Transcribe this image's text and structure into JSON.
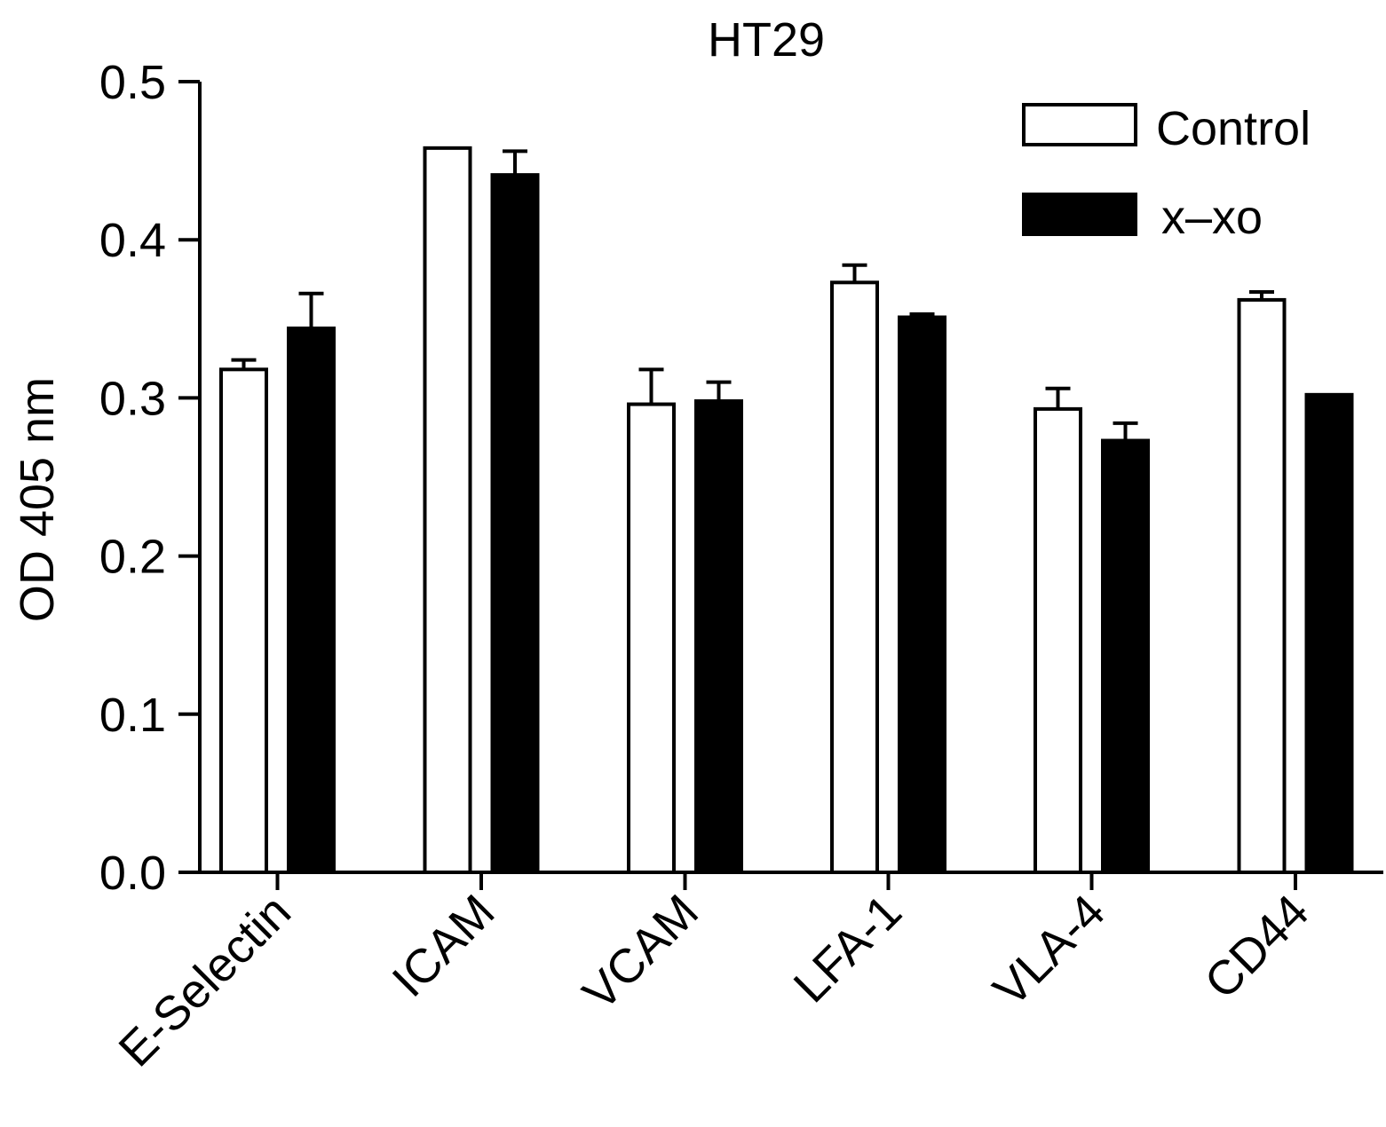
{
  "chart_data": {
    "type": "bar",
    "title": "HT29",
    "xlabel": "",
    "ylabel": "OD 405 nm",
    "ylim": [
      0,
      0.5
    ],
    "yticks": [
      "0.0",
      "0.1",
      "0.2",
      "0.3",
      "0.4",
      "0.5"
    ],
    "categories": [
      "E-Selectin",
      "ICAM",
      "VCAM",
      "LFA-1",
      "VLA-4",
      "CD44"
    ],
    "series": [
      {
        "name": "Control",
        "color": "#ffffff",
        "values": [
          0.318,
          0.458,
          0.296,
          0.373,
          0.293,
          0.362
        ],
        "errors": [
          0.006,
          0.0,
          0.022,
          0.011,
          0.013,
          0.005
        ]
      },
      {
        "name": "x–xo",
        "color": "#000000",
        "values": [
          0.344,
          0.441,
          0.298,
          0.351,
          0.273,
          0.302
        ],
        "errors": [
          0.022,
          0.015,
          0.012,
          0.002,
          0.011,
          0.0
        ]
      }
    ],
    "legend_position": "top-right",
    "grid": false
  }
}
